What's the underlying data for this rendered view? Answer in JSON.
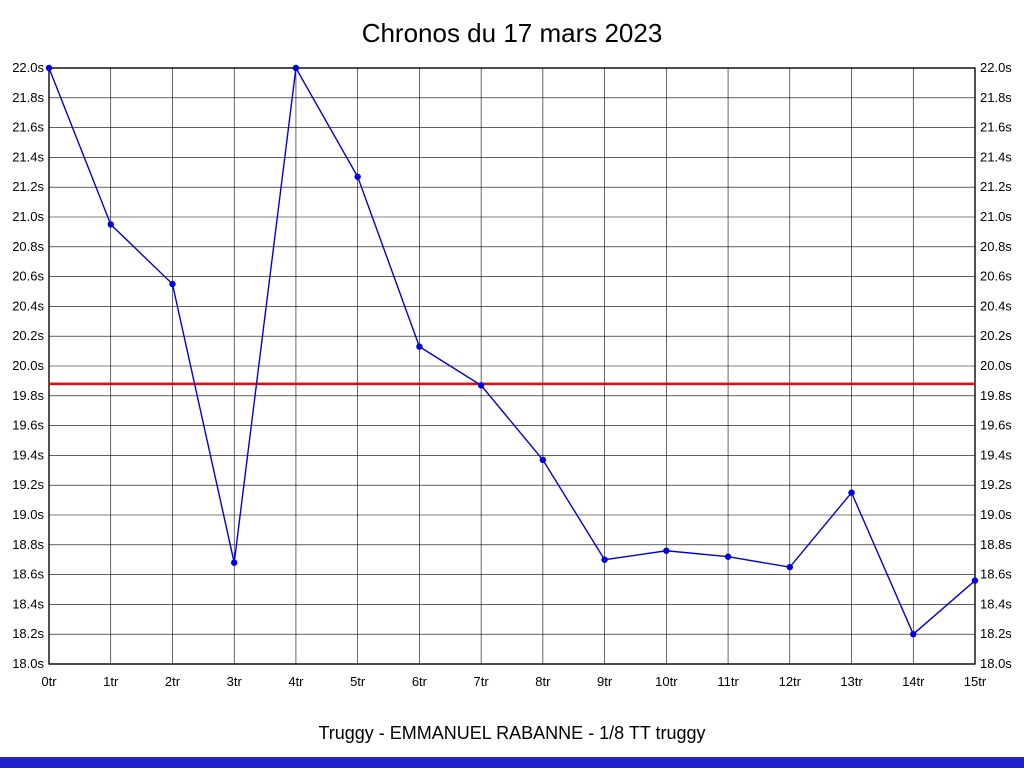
{
  "header": {
    "title": "Chronos du 17 mars 2023"
  },
  "footer": {
    "caption": "Truggy - EMMANUEL RABANNE - 1/8 TT truggy"
  },
  "colors": {
    "series": "#0000dd",
    "reference_line": "#ff0000",
    "grid": "#000000",
    "bottom_bar": "#2222cc",
    "background": "#ffffff"
  },
  "chart_data": {
    "type": "line",
    "title": "Chronos du 17 mars 2023",
    "categories": [
      "0tr",
      "1tr",
      "2tr",
      "3tr",
      "4tr",
      "5tr",
      "6tr",
      "7tr",
      "8tr",
      "9tr",
      "10tr",
      "11tr",
      "12tr",
      "13tr",
      "14tr",
      "15tr"
    ],
    "values": [
      22.0,
      20.95,
      20.55,
      18.68,
      22.0,
      21.27,
      20.13,
      19.87,
      19.37,
      18.7,
      18.76,
      18.72,
      18.65,
      19.15,
      18.2,
      18.56
    ],
    "unit": "s",
    "xlabel": "",
    "ylabel": "",
    "ylim": [
      18.0,
      22.0
    ],
    "ytick_step": 0.2,
    "reference_line": 19.88,
    "grid": true,
    "legend": "none",
    "y_axis_sides": [
      "left",
      "right"
    ],
    "annotation": "Truggy - EMMANUEL RABANNE - 1/8 TT truggy"
  }
}
